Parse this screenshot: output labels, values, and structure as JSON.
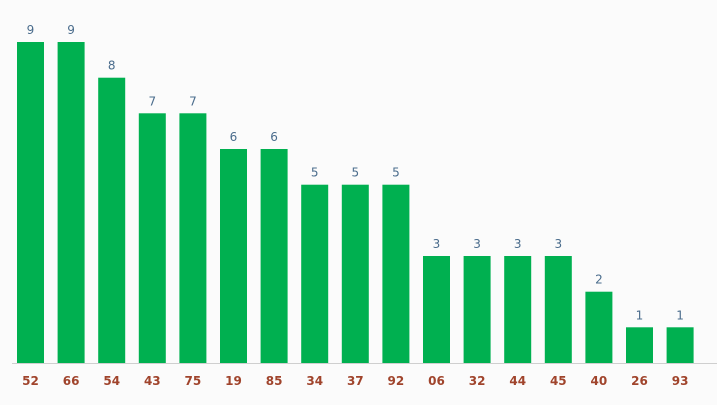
{
  "chart_data": {
    "type": "bar",
    "categories": [
      "52",
      "66",
      "54",
      "43",
      "75",
      "19",
      "85",
      "34",
      "37",
      "92",
      "06",
      "32",
      "44",
      "45",
      "40",
      "26",
      "93"
    ],
    "values": [
      9,
      9,
      8,
      7,
      7,
      6,
      6,
      5,
      5,
      5,
      3,
      3,
      3,
      3,
      2,
      1,
      1
    ],
    "title": "",
    "xlabel": "",
    "ylabel": "",
    "ylim": [
      0,
      9
    ],
    "grid": false,
    "data_labels": true,
    "colors": {
      "bar": "#00b050",
      "value_label": "#4a6c8c",
      "category_label": "#a0442c",
      "background": "#fbfbfb"
    }
  }
}
